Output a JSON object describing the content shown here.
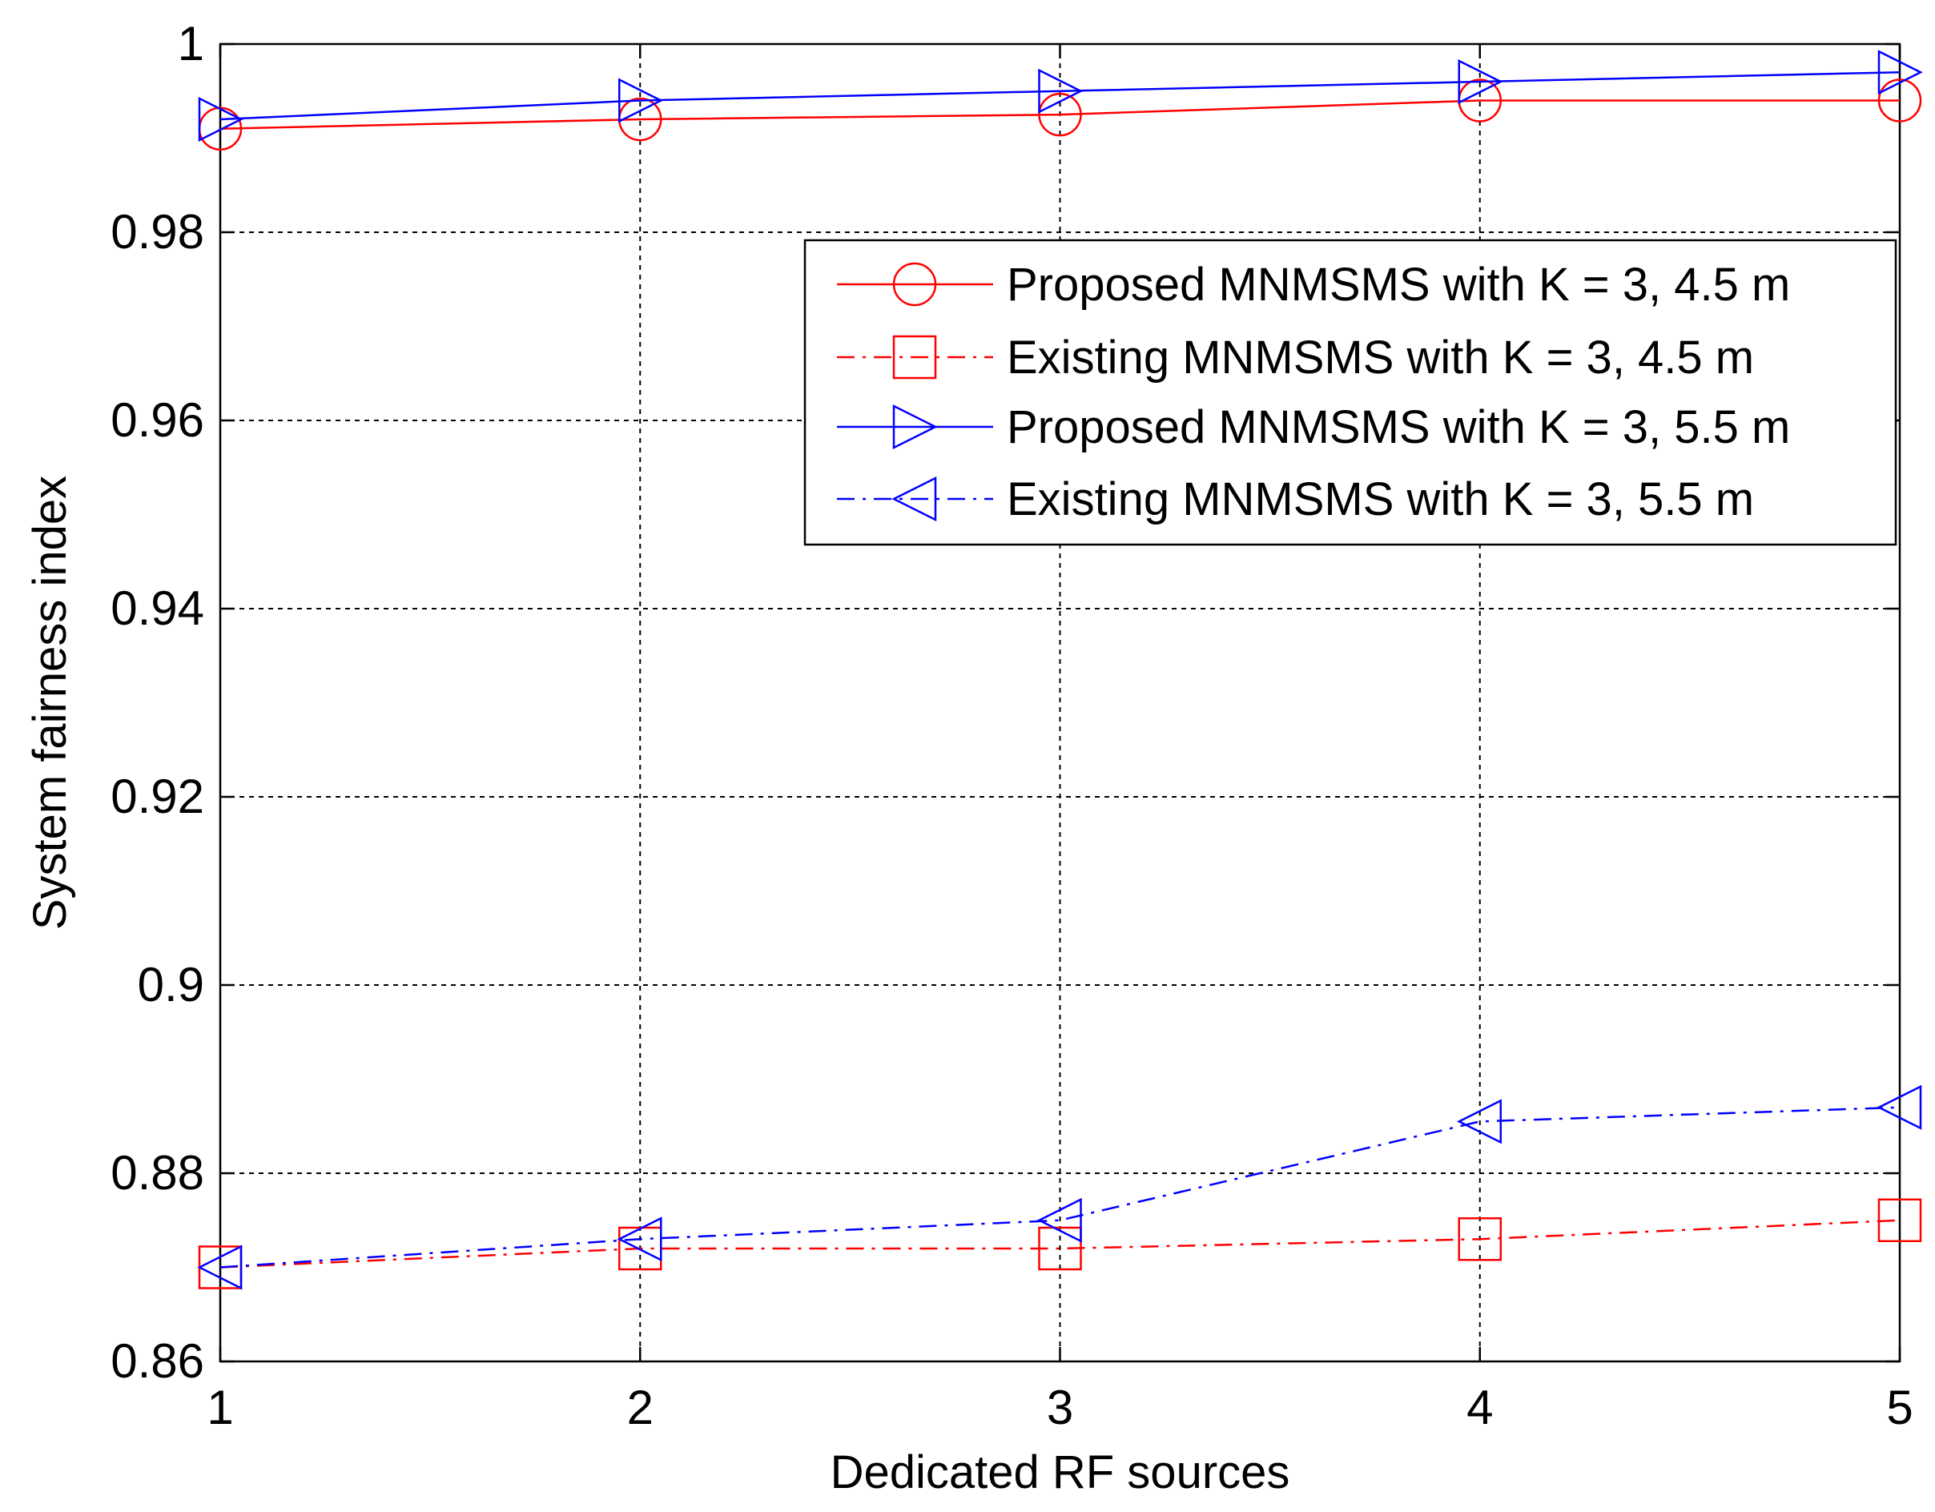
{
  "chart_data": {
    "type": "line",
    "title": "",
    "xlabel": "Dedicated RF sources",
    "ylabel": "System fairness index",
    "x": [
      1,
      2,
      3,
      4,
      5
    ],
    "xlim": [
      1,
      5
    ],
    "ylim": [
      0.86,
      1.0
    ],
    "xticks": [
      1,
      2,
      3,
      4,
      5
    ],
    "xtick_labels": [
      "1",
      "2",
      "3",
      "4",
      "5"
    ],
    "yticks": [
      0.86,
      0.88,
      0.9,
      0.92,
      0.94,
      0.96,
      0.98,
      1.0
    ],
    "ytick_labels": [
      "0.86",
      "0.88",
      "0.9",
      "0.92",
      "0.94",
      "0.96",
      "0.98",
      "1"
    ],
    "grid": true,
    "legend_position": "top-right",
    "series": [
      {
        "name": "Proposed MNMSMS with K = 3, 4.5 m",
        "values": [
          0.991,
          0.992,
          0.9925,
          0.994,
          0.994
        ],
        "color": "#ff0000",
        "line_style": "solid",
        "marker": "circle"
      },
      {
        "name": "Existing MNMSMS with K = 3, 4.5 m",
        "values": [
          0.87,
          0.872,
          0.872,
          0.873,
          0.875
        ],
        "color": "#ff0000",
        "line_style": "dashdot",
        "marker": "square"
      },
      {
        "name": "Proposed MNMSMS with K = 3, 5.5 m",
        "values": [
          0.992,
          0.994,
          0.995,
          0.996,
          0.997
        ],
        "color": "#0000ff",
        "line_style": "solid",
        "marker": "triangle-right"
      },
      {
        "name": "Existing MNMSMS with K = 3, 5.5 m",
        "values": [
          0.87,
          0.873,
          0.875,
          0.8855,
          0.887
        ],
        "color": "#0000ff",
        "line_style": "dashdot",
        "marker": "triangle-left"
      }
    ]
  }
}
